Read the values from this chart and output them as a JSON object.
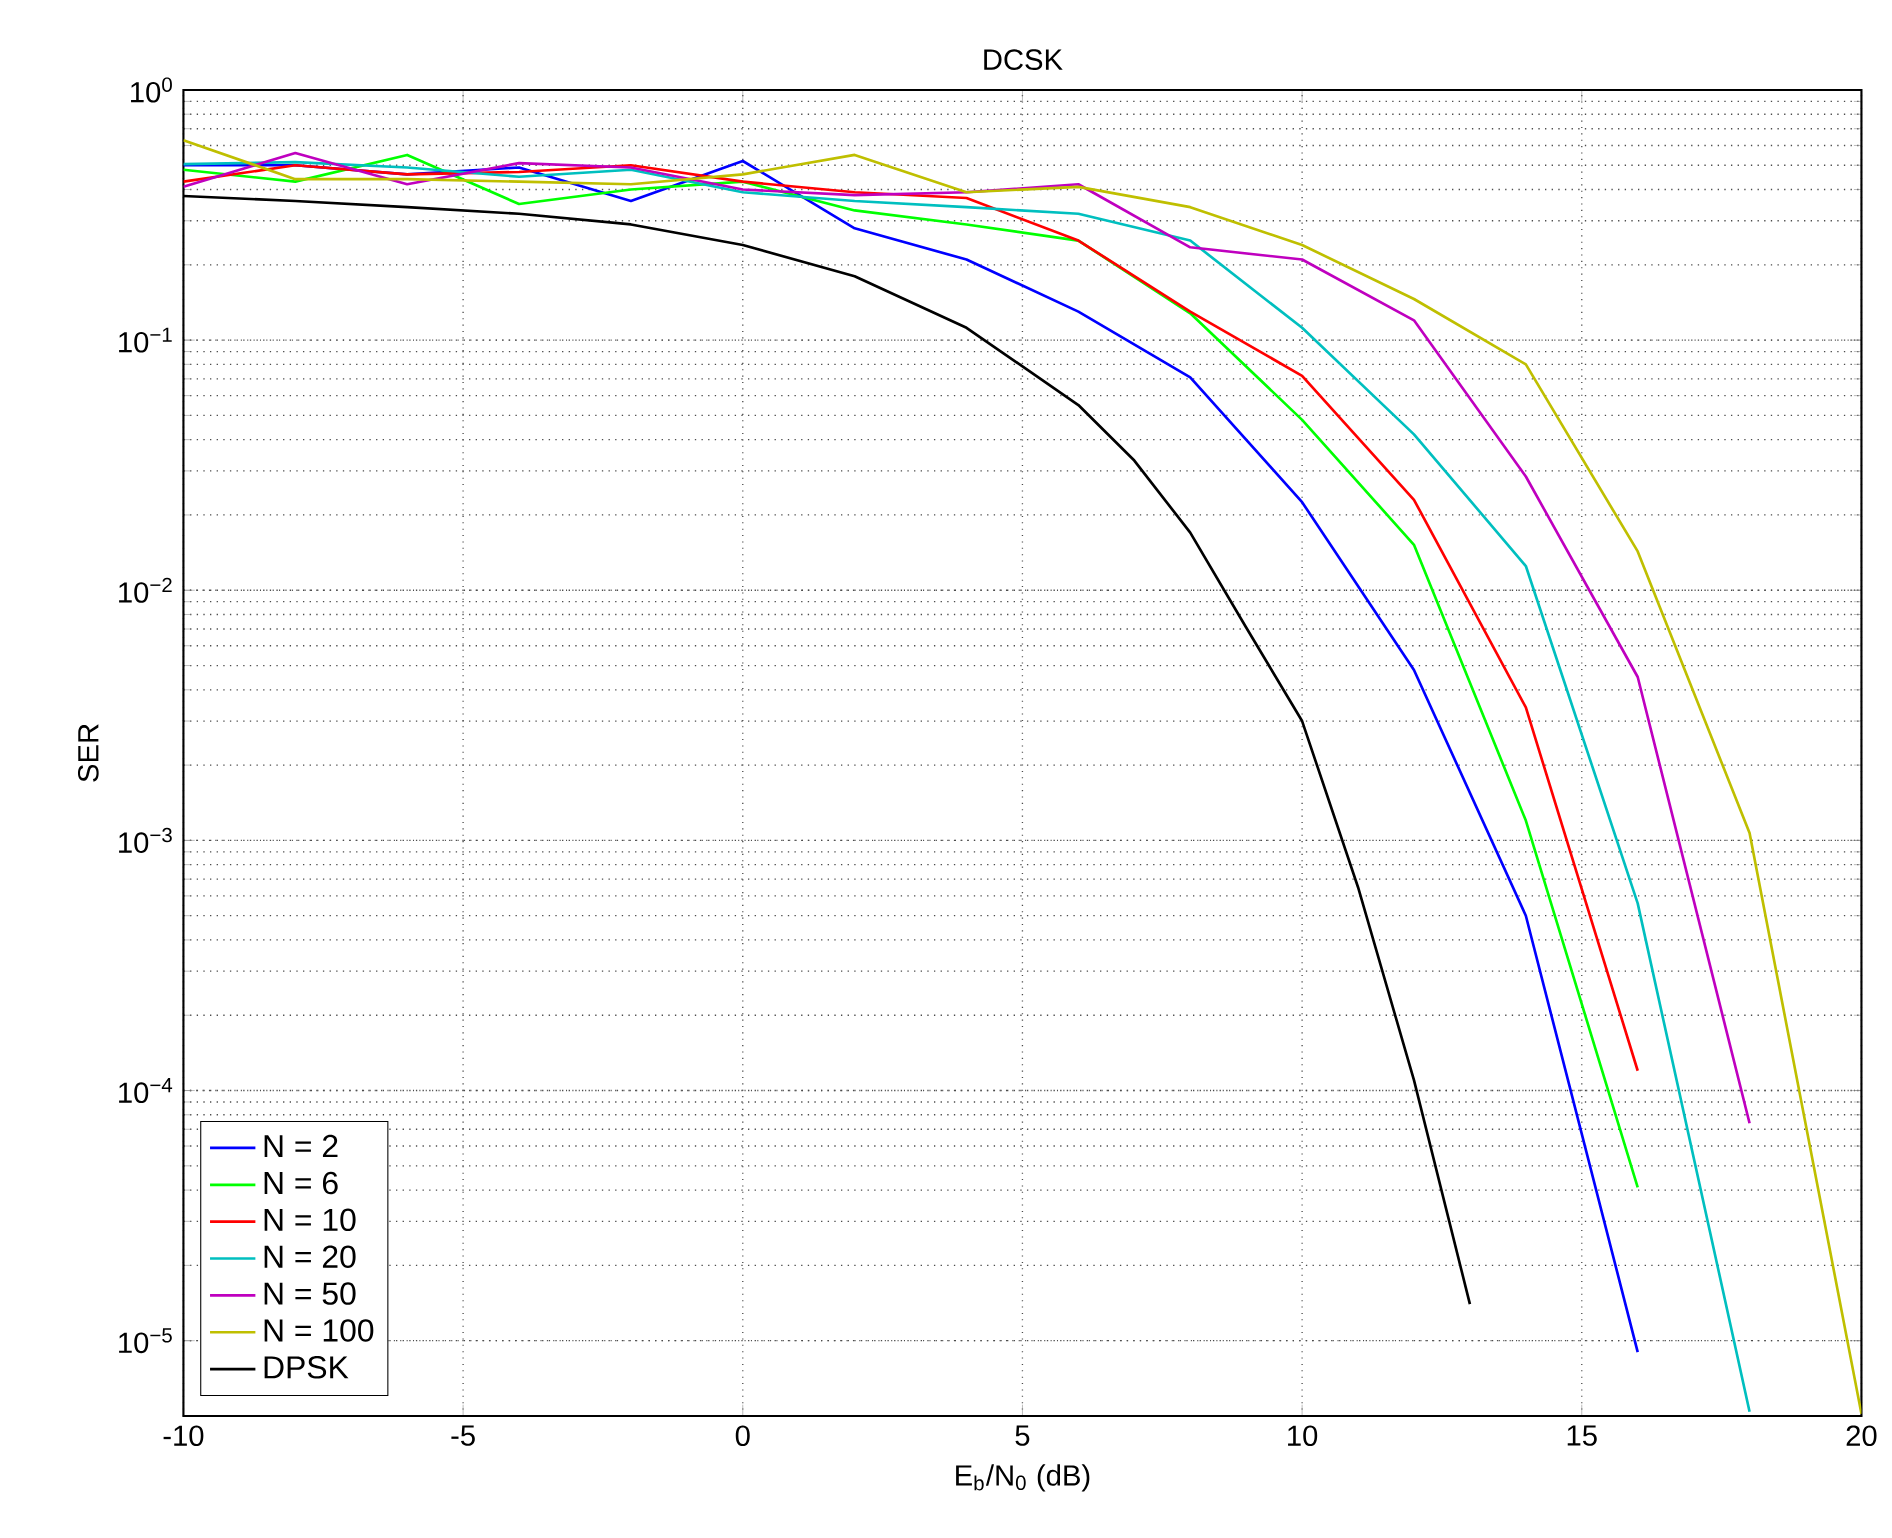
{
  "chart_data": {
    "type": "line",
    "title": "DCSK",
    "xlabel": "E$_{b}$/N$_{0}$ (dB)",
    "ylabel": "SER",
    "x": [
      -10,
      -8,
      -6,
      -4,
      -2,
      0,
      2,
      4,
      6,
      8,
      10,
      12,
      14,
      16,
      18,
      20
    ],
    "series": [
      {
        "name": "N = 2",
        "color": "#0000ff",
        "values": [
          0.5,
          0.5,
          0.46,
          0.49,
          0.36,
          0.52,
          0.28,
          0.21,
          0.13,
          0.071,
          0.0225,
          0.0048,
          0.0005,
          9e-06,
          null,
          null
        ]
      },
      {
        "name": "N = 6",
        "color": "#00ff00",
        "values": [
          0.48,
          0.43,
          0.55,
          0.35,
          0.4,
          0.43,
          0.33,
          0.29,
          0.25,
          0.128,
          0.048,
          0.0152,
          0.0012,
          4.1e-05,
          null,
          null
        ]
      },
      {
        "name": "N = 10",
        "color": "#ff0000",
        "values": [
          0.43,
          0.5,
          0.46,
          0.47,
          0.5,
          0.43,
          0.39,
          0.37,
          0.25,
          0.13,
          0.072,
          0.023,
          0.0034,
          0.00012,
          null,
          null
        ]
      },
      {
        "name": "N = 20",
        "color": "#00bfbf",
        "values": [
          0.505,
          0.515,
          0.49,
          0.45,
          0.48,
          0.39,
          0.36,
          0.34,
          0.32,
          0.25,
          0.112,
          0.042,
          0.0125,
          0.00056,
          5.2e-06,
          null
        ]
      },
      {
        "name": "N = 50",
        "color": "#bf00bf",
        "values": [
          0.41,
          0.56,
          0.42,
          0.51,
          0.49,
          0.4,
          0.38,
          0.39,
          0.42,
          0.235,
          0.21,
          0.12,
          0.0285,
          0.0045,
          7.4e-05,
          null
        ]
      },
      {
        "name": "N = 100",
        "color": "#bfbf00",
        "values": [
          0.63,
          0.44,
          0.44,
          0.43,
          0.42,
          0.46,
          0.55,
          0.39,
          0.41,
          0.34,
          0.24,
          0.146,
          0.08,
          0.0143,
          0.00107,
          5.1e-06
        ]
      },
      {
        "name": "DPSK",
        "color": "#000000",
        "x": [
          -10,
          -8,
          -6,
          -4,
          -2,
          0,
          2,
          4,
          6,
          7,
          8,
          9,
          10,
          11,
          12,
          13
        ],
        "values": [
          0.377,
          0.36,
          0.34,
          0.32,
          0.29,
          0.24,
          0.18,
          0.112,
          0.055,
          0.033,
          0.017,
          0.0071,
          0.003,
          0.00065,
          0.00011,
          1.4e-05
        ]
      }
    ],
    "xlim": [
      -10,
      20
    ],
    "xticks": [
      -10,
      -5,
      0,
      5,
      10,
      15,
      20
    ],
    "ylim": [
      5e-06,
      1
    ],
    "log": "y",
    "yticks": [
      {
        "value": 1e-05,
        "label": "10$^{−5}$"
      },
      {
        "value": 0.0001,
        "label": "10$^{−4}$"
      },
      {
        "value": 0.001,
        "label": "10$^{−3}$"
      },
      {
        "value": 0.01,
        "label": "10$^{−2}$"
      },
      {
        "value": 0.1,
        "label": "10$^{−1}$"
      },
      {
        "value": 1,
        "label": "10$^{0}$"
      }
    ],
    "grid": true,
    "legend": "bottom left",
    "line_style": "solid",
    "marker": "none"
  }
}
